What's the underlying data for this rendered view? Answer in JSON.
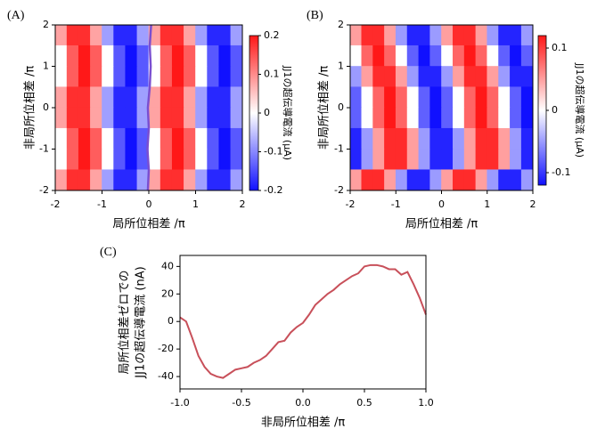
{
  "chart_data": [
    {
      "type": "heatmap",
      "label": "(A)",
      "xlabel": "局所位相差 /π",
      "ylabel": "非局所位相差 /π",
      "colorbar_label": "JJ1の超伝導電流 (μA)",
      "colors": [
        "#1010ff",
        "#ffffff",
        "#ff1818"
      ],
      "xlim": [
        -2,
        2
      ],
      "ylim": [
        -2,
        2
      ],
      "xticks": [
        -2,
        -1,
        0,
        1,
        2
      ],
      "yticks": [
        -2,
        -1,
        0,
        1,
        2
      ],
      "zlim": [
        -0.2,
        0.2
      ],
      "zticks": [
        -0.2,
        -0.1,
        0,
        0.1,
        0.2
      ],
      "x": [
        -1.875,
        -1.625,
        -1.375,
        -1.125,
        -0.875,
        -0.625,
        -0.375,
        -0.125,
        0.125,
        0.375,
        0.625,
        0.875,
        1.125,
        1.375,
        1.625,
        1.875
      ],
      "y": [
        1.75,
        1.25,
        0.75,
        0.25,
        -0.25,
        -0.75,
        -1.25,
        -1.75
      ],
      "z": [
        [
          0.08,
          0.18,
          0.18,
          0.08,
          -0.08,
          -0.18,
          -0.18,
          -0.08,
          0.08,
          0.18,
          0.18,
          0.08,
          -0.08,
          -0.18,
          -0.18,
          -0.08
        ],
        [
          0,
          0.14,
          0.2,
          0.14,
          0,
          -0.14,
          -0.2,
          -0.14,
          0,
          0.14,
          0.2,
          0.14,
          0,
          -0.14,
          -0.2,
          -0.14
        ],
        [
          0,
          0.14,
          0.2,
          0.14,
          0,
          -0.14,
          -0.2,
          -0.14,
          0,
          0.14,
          0.2,
          0.14,
          0,
          -0.14,
          -0.2,
          -0.14
        ],
        [
          0.08,
          0.18,
          0.18,
          0.08,
          -0.08,
          -0.18,
          -0.18,
          -0.08,
          0.08,
          0.18,
          0.18,
          0.08,
          -0.08,
          -0.18,
          -0.18,
          -0.08
        ],
        [
          0.08,
          0.18,
          0.18,
          0.08,
          -0.08,
          -0.18,
          -0.18,
          -0.08,
          0.08,
          0.18,
          0.18,
          0.08,
          -0.08,
          -0.18,
          -0.18,
          -0.08
        ],
        [
          0,
          0.14,
          0.2,
          0.14,
          0,
          -0.14,
          -0.2,
          -0.14,
          0,
          0.14,
          0.2,
          0.14,
          0,
          -0.14,
          -0.2,
          -0.14
        ],
        [
          0,
          0.14,
          0.2,
          0.14,
          0,
          -0.14,
          -0.2,
          -0.14,
          0,
          0.14,
          0.2,
          0.14,
          0,
          -0.14,
          -0.2,
          -0.14
        ],
        [
          0.08,
          0.18,
          0.18,
          0.08,
          -0.08,
          -0.18,
          -0.18,
          -0.08,
          0.08,
          0.18,
          0.18,
          0.08,
          -0.08,
          -0.18,
          -0.18,
          -0.08
        ]
      ],
      "overlay": {
        "color": "#7b4fd0",
        "x": [
          -0.02,
          0.0,
          -0.03,
          0.0,
          -0.02,
          0.02,
          0.04,
          0.02,
          0.05
        ],
        "y": [
          -2,
          -1.5,
          -1,
          -0.5,
          0,
          0.5,
          1,
          1.5,
          2
        ]
      }
    },
    {
      "type": "heatmap",
      "label": "(B)",
      "xlabel": "局所位相差 /π",
      "ylabel": "非局所位相差 /π",
      "colorbar_label": "JJ1の超伝導電流 (μA)",
      "colors": [
        "#1010ff",
        "#ffffff",
        "#ff1818"
      ],
      "xlim": [
        -2,
        2
      ],
      "ylim": [
        -2,
        2
      ],
      "xticks": [
        -2,
        -1,
        0,
        1,
        2
      ],
      "yticks": [
        -2,
        -1,
        0,
        1,
        2
      ],
      "zlim": [
        -0.12,
        0.12
      ],
      "zticks": [
        -0.1,
        0,
        0.1
      ],
      "x": [
        -1.875,
        -1.625,
        -1.375,
        -1.125,
        -0.875,
        -0.625,
        -0.375,
        -0.125,
        0.125,
        0.375,
        0.625,
        0.875,
        1.125,
        1.375,
        1.625,
        1.875
      ],
      "y": [
        1.75,
        1.25,
        0.75,
        0.25,
        -0.25,
        -0.75,
        -1.25,
        -1.75
      ],
      "z": [
        [
          0.05,
          0.11,
          0.11,
          0.05,
          -0.05,
          -0.11,
          -0.11,
          -0.05,
          0.05,
          0.11,
          0.11,
          0.05,
          -0.05,
          -0.11,
          -0.11,
          -0.05
        ],
        [
          0,
          0.08,
          0.12,
          0.08,
          0,
          -0.08,
          -0.12,
          -0.08,
          0,
          0.08,
          0.12,
          0.08,
          0,
          -0.08,
          -0.12,
          -0.08
        ],
        [
          -0.05,
          0.05,
          0.11,
          0.11,
          0.05,
          -0.05,
          -0.11,
          -0.11,
          -0.05,
          0.05,
          0.11,
          0.11,
          0.05,
          -0.05,
          -0.11,
          -0.11
        ],
        [
          -0.08,
          0,
          0.08,
          0.12,
          0.08,
          0,
          -0.08,
          -0.12,
          -0.08,
          0,
          0.08,
          0.12,
          0.08,
          0,
          -0.08,
          -0.12
        ],
        [
          -0.08,
          0,
          0.08,
          0.12,
          0.08,
          0,
          -0.08,
          -0.12,
          -0.08,
          0,
          0.08,
          0.12,
          0.08,
          0,
          -0.08,
          -0.12
        ],
        [
          -0.11,
          -0.05,
          0.05,
          0.11,
          0.11,
          0.05,
          -0.05,
          -0.11,
          -0.11,
          -0.05,
          0.05,
          0.11,
          0.11,
          0.05,
          -0.05,
          -0.11
        ],
        [
          -0.11,
          -0.05,
          0.05,
          0.11,
          0.11,
          0.05,
          -0.05,
          -0.11,
          -0.11,
          -0.05,
          0.05,
          0.11,
          0.11,
          0.05,
          -0.05,
          -0.11
        ],
        [
          0.05,
          0.11,
          0.11,
          0.05,
          -0.05,
          -0.11,
          -0.11,
          -0.05,
          0.05,
          0.11,
          0.11,
          0.05,
          -0.05,
          -0.11,
          -0.11,
          -0.05
        ]
      ]
    },
    {
      "type": "line",
      "label": "(C)",
      "xlabel": "非局所位相差 /π",
      "ylabel": [
        "局所位相差ゼロでの",
        "JJ1の超伝導電流 (nA)"
      ],
      "color": "#c8505a",
      "xlim": [
        -1,
        1
      ],
      "ylim": [
        -49,
        48
      ],
      "xticks": [
        {
          "value": -1,
          "label": "-1.0"
        },
        {
          "value": -0.5,
          "label": "-0.5"
        },
        {
          "value": 0,
          "label": "0.0"
        },
        {
          "value": 0.5,
          "label": "0.5"
        },
        {
          "value": 1,
          "label": "1.0"
        }
      ],
      "yticks": [
        -40,
        -20,
        0,
        20,
        40
      ],
      "x": [
        -1.0,
        -0.95,
        -0.9,
        -0.85,
        -0.8,
        -0.75,
        -0.7,
        -0.65,
        -0.6,
        -0.55,
        -0.5,
        -0.45,
        -0.4,
        -0.35,
        -0.3,
        -0.25,
        -0.2,
        -0.15,
        -0.1,
        -0.05,
        0.0,
        0.05,
        0.1,
        0.15,
        0.2,
        0.25,
        0.3,
        0.35,
        0.4,
        0.45,
        0.5,
        0.55,
        0.6,
        0.65,
        0.7,
        0.75,
        0.8,
        0.85,
        0.9,
        0.95,
        1.0
      ],
      "values": [
        3,
        0,
        -12,
        -25,
        -33,
        -38,
        -40,
        -41,
        -38,
        -35,
        -34,
        -33,
        -30,
        -28,
        -25,
        -20,
        -15,
        -14,
        -8,
        -4,
        -1,
        5,
        12,
        16,
        20,
        23,
        27,
        30,
        33,
        35,
        40,
        41,
        41,
        40,
        38,
        38,
        34,
        36,
        27,
        17,
        5
      ]
    }
  ]
}
